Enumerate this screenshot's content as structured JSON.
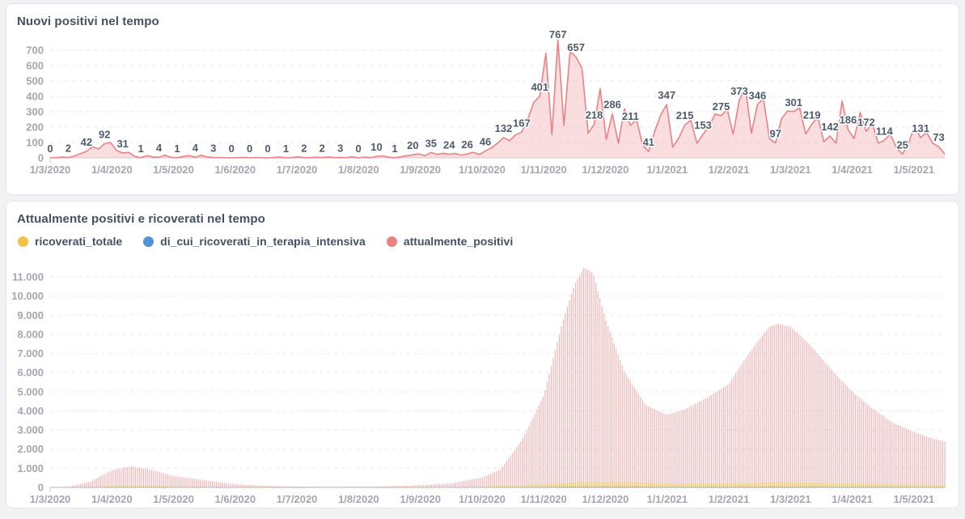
{
  "accent_colors": {
    "salmon": "#ec8184",
    "salmon_fill": "rgba(236,129,132,0.26)",
    "yellow": "#f3c242",
    "blue": "#4e94d6",
    "grid": "#eaeaef",
    "axis_text": "#a6a5b1",
    "baseline_top": "#d5d5db",
    "baseline_bottom": "#b7b4ba"
  },
  "chart_data": [
    {
      "id": "nuovi-positivi",
      "type": "line",
      "title": "Nuovi positivi nel tempo",
      "series_name": "nuovi_positivi",
      "color": "#ec8184",
      "fill": "rgba(236,129,132,0.26)",
      "grid": true,
      "legend_position": "none",
      "ylim": [
        0,
        780
      ],
      "y_ticks": [
        0,
        100,
        200,
        300,
        400,
        500,
        600,
        700
      ],
      "x_tick_labels": [
        "1/3/2020",
        "1/4/2020",
        "1/5/2020",
        "1/6/2020",
        "1/7/2020",
        "1/8/2020",
        "1/9/2020",
        "1/10/2020",
        "1/11/2020",
        "1/12/2020",
        "1/1/2021",
        "1/2/2021",
        "1/3/2021",
        "1/4/2021",
        "1/5/2021"
      ],
      "x_span_months": 14.5,
      "labeled_values": [
        0,
        2,
        42,
        92,
        31,
        1,
        4,
        1,
        4,
        3,
        0,
        0,
        0,
        1,
        2,
        2,
        3,
        0,
        10,
        1,
        20,
        35,
        24,
        26,
        46,
        132,
        167,
        401,
        767,
        657,
        218,
        286,
        211,
        41,
        347,
        215,
        153,
        275,
        373,
        346,
        97,
        301,
        219,
        142,
        186,
        172,
        114,
        25,
        131,
        73
      ],
      "points": [
        [
          0,
          "0"
        ],
        [
          2,
          null
        ],
        [
          5,
          null
        ],
        [
          2,
          "2"
        ],
        [
          12,
          null
        ],
        [
          28,
          null
        ],
        [
          42,
          "42"
        ],
        [
          72,
          null
        ],
        [
          58,
          null
        ],
        [
          92,
          "92"
        ],
        [
          100,
          null
        ],
        [
          48,
          null
        ],
        [
          31,
          "31"
        ],
        [
          36,
          null
        ],
        [
          10,
          null
        ],
        [
          1,
          "1"
        ],
        [
          14,
          null
        ],
        [
          6,
          null
        ],
        [
          4,
          "4"
        ],
        [
          18,
          null
        ],
        [
          3,
          null
        ],
        [
          1,
          "1"
        ],
        [
          9,
          null
        ],
        [
          16,
          null
        ],
        [
          4,
          "4"
        ],
        [
          17,
          null
        ],
        [
          6,
          null
        ],
        [
          3,
          "3"
        ],
        [
          2,
          null
        ],
        [
          1,
          null
        ],
        [
          0,
          "0"
        ],
        [
          1,
          null
        ],
        [
          3,
          null
        ],
        [
          0,
          "0"
        ],
        [
          2,
          null
        ],
        [
          1,
          null
        ],
        [
          0,
          "0"
        ],
        [
          3,
          null
        ],
        [
          5,
          null
        ],
        [
          1,
          "1"
        ],
        [
          2,
          null
        ],
        [
          7,
          null
        ],
        [
          2,
          "2"
        ],
        [
          1,
          null
        ],
        [
          4,
          null
        ],
        [
          2,
          "2"
        ],
        [
          6,
          null
        ],
        [
          2,
          null
        ],
        [
          3,
          "3"
        ],
        [
          1,
          null
        ],
        [
          8,
          null
        ],
        [
          0,
          "0"
        ],
        [
          5,
          null
        ],
        [
          2,
          null
        ],
        [
          10,
          "10"
        ],
        [
          13,
          null
        ],
        [
          4,
          null
        ],
        [
          1,
          "1"
        ],
        [
          7,
          null
        ],
        [
          14,
          null
        ],
        [
          20,
          "20"
        ],
        [
          26,
          null
        ],
        [
          14,
          null
        ],
        [
          35,
          "35"
        ],
        [
          22,
          null
        ],
        [
          30,
          null
        ],
        [
          24,
          "24"
        ],
        [
          29,
          null
        ],
        [
          18,
          null
        ],
        [
          26,
          "26"
        ],
        [
          36,
          null
        ],
        [
          22,
          null
        ],
        [
          46,
          "46"
        ],
        [
          65,
          null
        ],
        [
          95,
          null
        ],
        [
          132,
          "132"
        ],
        [
          112,
          null
        ],
        [
          150,
          null
        ],
        [
          167,
          "167"
        ],
        [
          250,
          null
        ],
        [
          360,
          null
        ],
        [
          401,
          "401"
        ],
        [
          680,
          null
        ],
        [
          150,
          null
        ],
        [
          767,
          "767"
        ],
        [
          210,
          null
        ],
        [
          690,
          null
        ],
        [
          657,
          "657"
        ],
        [
          580,
          null
        ],
        [
          160,
          null
        ],
        [
          218,
          "218"
        ],
        [
          450,
          null
        ],
        [
          120,
          null
        ],
        [
          286,
          "286"
        ],
        [
          95,
          null
        ],
        [
          320,
          null
        ],
        [
          211,
          "211"
        ],
        [
          250,
          null
        ],
        [
          85,
          null
        ],
        [
          41,
          "41"
        ],
        [
          170,
          null
        ],
        [
          280,
          null
        ],
        [
          347,
          "347"
        ],
        [
          70,
          null
        ],
        [
          130,
          null
        ],
        [
          215,
          "215"
        ],
        [
          245,
          null
        ],
        [
          95,
          null
        ],
        [
          153,
          "153"
        ],
        [
          205,
          null
        ],
        [
          285,
          null
        ],
        [
          275,
          "275"
        ],
        [
          315,
          null
        ],
        [
          155,
          null
        ],
        [
          373,
          "373"
        ],
        [
          465,
          null
        ],
        [
          160,
          null
        ],
        [
          346,
          "346"
        ],
        [
          385,
          null
        ],
        [
          125,
          null
        ],
        [
          97,
          "97"
        ],
        [
          255,
          null
        ],
        [
          305,
          null
        ],
        [
          301,
          "301"
        ],
        [
          325,
          null
        ],
        [
          155,
          null
        ],
        [
          219,
          "219"
        ],
        [
          265,
          null
        ],
        [
          105,
          null
        ],
        [
          142,
          "142"
        ],
        [
          95,
          null
        ],
        [
          370,
          null
        ],
        [
          186,
          "186"
        ],
        [
          125,
          null
        ],
        [
          295,
          null
        ],
        [
          172,
          "172"
        ],
        [
          225,
          null
        ],
        [
          95,
          null
        ],
        [
          114,
          "114"
        ],
        [
          155,
          null
        ],
        [
          65,
          null
        ],
        [
          25,
          "25"
        ],
        [
          95,
          null
        ],
        [
          205,
          null
        ],
        [
          131,
          "131"
        ],
        [
          165,
          null
        ],
        [
          95,
          null
        ],
        [
          73,
          "73"
        ],
        [
          25,
          null
        ]
      ]
    },
    {
      "id": "attualmente-positivi",
      "type": "bar",
      "title": "Attualmente positivi e ricoverati nel tempo",
      "grid": true,
      "legend_position": "top",
      "legend": [
        {
          "label": "ricoverati_totale",
          "color": "#f3c242"
        },
        {
          "label": "di_cui_ricoverati_in_terapia_intensiva",
          "color": "#4e94d6"
        },
        {
          "label": "attualmente_positivi",
          "color": "#ec8184"
        }
      ],
      "ylim": [
        0,
        11700
      ],
      "y_tick_step": 1000,
      "y_tick_labels": [
        "0",
        "1.000",
        "2.000",
        "3.000",
        "4.000",
        "5.000",
        "6.000",
        "7.000",
        "8.000",
        "9.000",
        "10.000",
        "11.000"
      ],
      "x_tick_labels": [
        "1/3/2020",
        "1/4/2020",
        "1/5/2020",
        "1/6/2020",
        "1/7/2020",
        "1/8/2020",
        "1/9/2020",
        "1/10/2020",
        "1/11/2020",
        "1/12/2020",
        "1/1/2021",
        "1/2/2021",
        "1/3/2021",
        "1/4/2021",
        "1/5/2021"
      ],
      "x_span_months": 14.5,
      "series": [
        {
          "name": "attualmente_positivi",
          "color": "rgba(233,113,116,0.5)",
          "keypoints": [
            [
              0,
              0
            ],
            [
              0.3,
              30
            ],
            [
              0.65,
              300
            ],
            [
              1.0,
              900
            ],
            [
              1.3,
              1100
            ],
            [
              1.6,
              950
            ],
            [
              2.0,
              600
            ],
            [
              2.5,
              380
            ],
            [
              3.0,
              170
            ],
            [
              3.5,
              80
            ],
            [
              4.0,
              45
            ],
            [
              4.5,
              25
            ],
            [
              5.0,
              30
            ],
            [
              5.5,
              60
            ],
            [
              6.0,
              120
            ],
            [
              6.5,
              210
            ],
            [
              7.0,
              520
            ],
            [
              7.3,
              950
            ],
            [
              7.65,
              2500
            ],
            [
              8.0,
              4800
            ],
            [
              8.3,
              8600
            ],
            [
              8.5,
              10600
            ],
            [
              8.65,
              11500
            ],
            [
              8.8,
              11200
            ],
            [
              9.0,
              8800
            ],
            [
              9.3,
              6100
            ],
            [
              9.65,
              4300
            ],
            [
              10.0,
              3800
            ],
            [
              10.3,
              4100
            ],
            [
              10.65,
              4700
            ],
            [
              11.0,
              5400
            ],
            [
              11.3,
              6900
            ],
            [
              11.65,
              8400
            ],
            [
              11.8,
              8550
            ],
            [
              12.0,
              8400
            ],
            [
              12.3,
              7500
            ],
            [
              12.65,
              6200
            ],
            [
              13.0,
              5000
            ],
            [
              13.3,
              4200
            ],
            [
              13.65,
              3400
            ],
            [
              14.0,
              2900
            ],
            [
              14.3,
              2550
            ],
            [
              14.5,
              2400
            ]
          ]
        },
        {
          "name": "ricoverati_totale",
          "color": "rgba(243,194,66,0.9)",
          "keypoints": [
            [
              0,
              0
            ],
            [
              0.6,
              25
            ],
            [
              1.0,
              70
            ],
            [
              1.3,
              95
            ],
            [
              2.0,
              55
            ],
            [
              3.0,
              18
            ],
            [
              4.0,
              6
            ],
            [
              5.0,
              5
            ],
            [
              6.0,
              12
            ],
            [
              7.0,
              45
            ],
            [
              7.65,
              110
            ],
            [
              8.0,
              180
            ],
            [
              8.65,
              280
            ],
            [
              9.3,
              290
            ],
            [
              10.0,
              210
            ],
            [
              11.0,
              220
            ],
            [
              11.8,
              270
            ],
            [
              12.3,
              260
            ],
            [
              13.0,
              220
            ],
            [
              14.0,
              150
            ],
            [
              14.5,
              120
            ]
          ]
        },
        {
          "name": "di_cui_ricoverati_in_terapia_intensiva",
          "color": "#4e94d6",
          "keypoints": [
            [
              0,
              0
            ],
            [
              1.0,
              12
            ],
            [
              1.3,
              18
            ],
            [
              2.0,
              10
            ],
            [
              3.0,
              3
            ],
            [
              5.0,
              1
            ],
            [
              7.0,
              5
            ],
            [
              8.65,
              35
            ],
            [
              9.3,
              35
            ],
            [
              10.0,
              25
            ],
            [
              11.8,
              32
            ],
            [
              13.0,
              26
            ],
            [
              14.0,
              16
            ],
            [
              14.5,
              12
            ]
          ]
        }
      ]
    }
  ]
}
